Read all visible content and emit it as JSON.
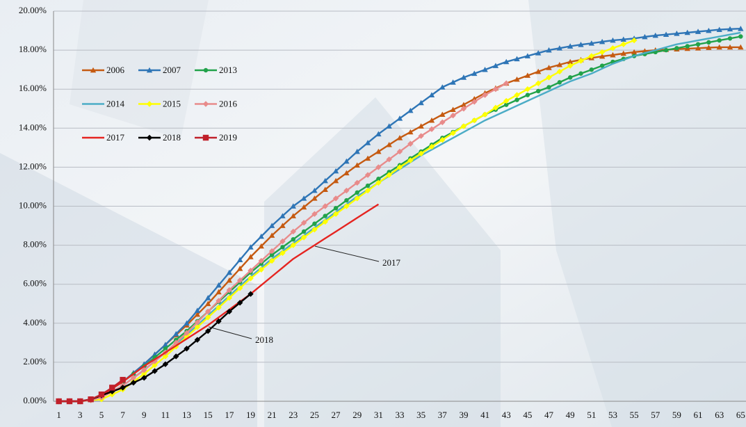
{
  "chart_data": {
    "type": "line",
    "categories": [
      1,
      null,
      3,
      null,
      5,
      null,
      7,
      null,
      9,
      null,
      11,
      null,
      13,
      null,
      15,
      null,
      17,
      null,
      19,
      null,
      21,
      null,
      23,
      null,
      25,
      null,
      27,
      null,
      29,
      null,
      31,
      null,
      33,
      null,
      35,
      null,
      37,
      null,
      39,
      null,
      41,
      null,
      43,
      null,
      45,
      null,
      47,
      null,
      49,
      null,
      51,
      null,
      53,
      null,
      55,
      null,
      57,
      null,
      59,
      null,
      61,
      null,
      63,
      null,
      65
    ],
    "ylim": [
      0,
      20
    ],
    "yticks": [
      {
        "value": 0,
        "label": "0.00%"
      },
      {
        "value": 2,
        "label": "2.00%"
      },
      {
        "value": 4,
        "label": "4.00%"
      },
      {
        "value": 6,
        "label": "6.00%"
      },
      {
        "value": 8,
        "label": "8.00%"
      },
      {
        "value": 10,
        "label": "10.00%"
      },
      {
        "value": 12,
        "label": "12.00%"
      },
      {
        "value": 14,
        "label": "14.00%"
      },
      {
        "value": 16,
        "label": "16.00%"
      },
      {
        "value": 18,
        "label": "18.00%"
      },
      {
        "value": 20,
        "label": "20.00%"
      }
    ],
    "grid": true,
    "legend": "upper left",
    "series": [
      {
        "name": "2006",
        "color": "#c55a11",
        "marker": "triangle",
        "values": [
          0,
          0,
          0,
          0.1,
          0.3,
          0.65,
          1.0,
          1.45,
          1.9,
          2.4,
          2.9,
          3.4,
          3.9,
          4.45,
          5.0,
          5.6,
          6.2,
          6.8,
          7.4,
          7.95,
          8.5,
          9.0,
          9.5,
          9.95,
          10.4,
          10.85,
          11.3,
          11.7,
          12.1,
          12.45,
          12.8,
          13.15,
          13.5,
          13.8,
          14.1,
          14.4,
          14.7,
          14.95,
          15.2,
          15.5,
          15.8,
          16.05,
          16.3,
          16.5,
          16.7,
          16.9,
          17.1,
          17.25,
          17.4,
          17.5,
          17.6,
          17.68,
          17.75,
          17.83,
          17.9,
          17.95,
          18.0,
          18.03,
          18.05,
          18.08,
          18.1,
          18.13,
          18.15,
          18.15,
          18.15
        ]
      },
      {
        "name": "2007",
        "color": "#2e75b6",
        "marker": "triangle",
        "values": [
          0,
          0,
          0,
          0.1,
          0.3,
          0.65,
          1.0,
          1.45,
          1.9,
          2.4,
          2.9,
          3.45,
          4.0,
          4.65,
          5.3,
          5.95,
          6.6,
          7.25,
          7.9,
          8.45,
          9.0,
          9.5,
          10.0,
          10.4,
          10.8,
          11.3,
          11.8,
          12.3,
          12.8,
          13.25,
          13.7,
          14.1,
          14.5,
          14.9,
          15.3,
          15.7,
          16.1,
          16.35,
          16.6,
          16.8,
          17.0,
          17.2,
          17.4,
          17.55,
          17.7,
          17.85,
          18.0,
          18.1,
          18.2,
          18.28,
          18.35,
          18.43,
          18.5,
          18.55,
          18.6,
          18.68,
          18.75,
          18.8,
          18.85,
          18.9,
          18.95,
          19.0,
          19.05,
          19.08,
          19.1
        ]
      },
      {
        "name": "2013",
        "color": "#21a24a",
        "marker": "circle",
        "values": [
          0,
          0,
          0,
          0.1,
          0.3,
          0.65,
          1.0,
          1.4,
          1.8,
          2.25,
          2.7,
          3.15,
          3.6,
          4.1,
          4.6,
          5.1,
          5.6,
          6.1,
          6.6,
          7.05,
          7.5,
          7.9,
          8.3,
          8.7,
          9.1,
          9.5,
          9.9,
          10.3,
          10.7,
          11.05,
          11.4,
          11.75,
          12.1,
          12.45,
          12.8,
          13.15,
          13.5,
          13.8,
          14.1,
          14.4,
          14.7,
          14.95,
          15.2,
          15.45,
          15.7,
          15.9,
          16.1,
          16.35,
          16.6,
          16.8,
          17.0,
          17.2,
          17.4,
          17.55,
          17.7,
          17.8,
          17.9,
          18.0,
          18.1,
          18.2,
          18.3,
          18.4,
          18.5,
          18.6,
          18.7
        ]
      },
      {
        "name": "2014",
        "color": "#4bacc6",
        "marker": "none",
        "values": [
          0,
          0,
          0,
          0.05,
          0.2,
          0.5,
          0.8,
          1.2,
          1.6,
          2.05,
          2.5,
          2.95,
          3.4,
          3.9,
          4.4,
          4.9,
          5.4,
          5.9,
          6.4,
          6.85,
          7.3,
          7.7,
          8.1,
          8.5,
          8.9,
          9.3,
          9.7,
          10.1,
          10.5,
          10.85,
          11.2,
          11.55,
          11.9,
          12.25,
          12.6,
          12.9,
          13.2,
          13.5,
          13.8,
          14.1,
          14.4,
          14.65,
          14.9,
          15.15,
          15.4,
          15.65,
          15.9,
          16.15,
          16.4,
          16.6,
          16.8,
          17.05,
          17.3,
          17.5,
          17.7,
          17.85,
          18.0,
          18.15,
          18.3,
          18.4,
          18.5,
          18.6,
          18.7,
          18.8,
          18.9
        ]
      },
      {
        "name": "2015",
        "color": "#ffff00",
        "marker": "diamond",
        "values": [
          0,
          0,
          0,
          0.05,
          0.1,
          0.35,
          0.6,
          1.0,
          1.4,
          1.85,
          2.3,
          2.8,
          3.3,
          3.8,
          4.3,
          4.8,
          5.3,
          5.8,
          6.3,
          6.75,
          7.2,
          7.6,
          8.0,
          8.4,
          8.8,
          9.2,
          9.6,
          10.0,
          10.4,
          10.8,
          11.2,
          11.6,
          12.0,
          12.35,
          12.7,
          13.05,
          13.4,
          13.75,
          14.1,
          14.4,
          14.7,
          15.05,
          15.4,
          15.7,
          16.0,
          16.3,
          16.6,
          16.9,
          17.2,
          17.45,
          17.7,
          17.9,
          18.1,
          18.3,
          18.5,
          null,
          null,
          null,
          null,
          null,
          null,
          null,
          null,
          null,
          null
        ]
      },
      {
        "name": "2016",
        "color": "#e88b8b",
        "marker": "diamond",
        "values": [
          0,
          0,
          0,
          0.05,
          0.2,
          0.5,
          0.8,
          1.2,
          1.6,
          2.05,
          2.5,
          3.0,
          3.5,
          4.05,
          4.6,
          5.15,
          5.7,
          6.2,
          6.7,
          7.2,
          7.7,
          8.2,
          8.7,
          9.15,
          9.6,
          10.0,
          10.4,
          10.8,
          11.2,
          11.6,
          12.0,
          12.4,
          12.8,
          13.2,
          13.6,
          13.95,
          14.3,
          14.65,
          15.0,
          15.35,
          15.7,
          16.0,
          16.3,
          null,
          null,
          null,
          null,
          null,
          null,
          null,
          null,
          null,
          null,
          null,
          null,
          null,
          null,
          null,
          null,
          null,
          null,
          null,
          null,
          null,
          null
        ]
      },
      {
        "name": "2017",
        "color": "#e52420",
        "marker": "none",
        "values": [
          0,
          0,
          0,
          0.1,
          0.3,
          0.65,
          1.0,
          1.4,
          1.8,
          2.15,
          2.5,
          2.85,
          3.2,
          3.55,
          3.9,
          4.3,
          4.7,
          5.1,
          5.5,
          5.95,
          6.4,
          6.85,
          7.3,
          7.65,
          8.0,
          8.35,
          8.7,
          9.05,
          9.4,
          9.75,
          10.1,
          null,
          null,
          null,
          null,
          null,
          null,
          null,
          null,
          null,
          null,
          null,
          null,
          null,
          null,
          null,
          null,
          null,
          null,
          null,
          null,
          null,
          null,
          null,
          null,
          null,
          null,
          null,
          null,
          null,
          null,
          null,
          null,
          null,
          null
        ]
      },
      {
        "name": "2018",
        "color": "#000000",
        "marker": "diamond",
        "values": [
          0,
          0,
          0,
          0.1,
          0.3,
          0.5,
          0.7,
          0.95,
          1.2,
          1.55,
          1.9,
          2.3,
          2.7,
          3.15,
          3.6,
          4.1,
          4.6,
          5.05,
          5.5,
          null,
          null,
          null,
          null,
          null,
          null,
          null,
          null,
          null,
          null,
          null,
          null,
          null,
          null,
          null,
          null,
          null,
          null,
          null,
          null,
          null,
          null,
          null,
          null,
          null,
          null,
          null,
          null,
          null,
          null,
          null,
          null,
          null,
          null,
          null,
          null,
          null,
          null,
          null,
          null,
          null,
          null,
          null,
          null,
          null,
          null
        ]
      },
      {
        "name": "2019",
        "color": "#c0202a",
        "marker": "square",
        "values": [
          0,
          0,
          0,
          0.1,
          0.35,
          0.7,
          1.1,
          null,
          null,
          null,
          null,
          null,
          null,
          null,
          null,
          null,
          null,
          null,
          null,
          null,
          null,
          null,
          null,
          null,
          null,
          null,
          null,
          null,
          null,
          null,
          null,
          null,
          null,
          null,
          null,
          null,
          null,
          null,
          null,
          null,
          null,
          null,
          null,
          null,
          null,
          null,
          null,
          null,
          null,
          null,
          null,
          null,
          null,
          null,
          null,
          null,
          null,
          null,
          null,
          null,
          null,
          null,
          null,
          null,
          null
        ]
      }
    ],
    "annotations": [
      {
        "text": "2017"
      },
      {
        "text": "2018"
      }
    ]
  }
}
